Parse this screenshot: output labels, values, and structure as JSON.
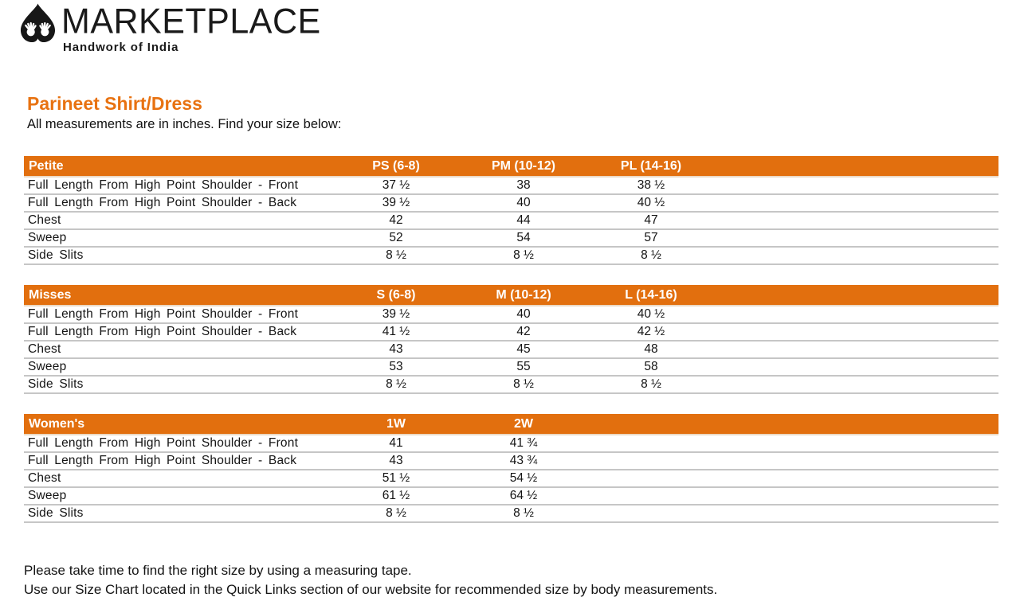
{
  "logo": {
    "brand": "MARKETPLACE",
    "tagline": "Handwork of India",
    "icon": "leaf-hands-logo-icon"
  },
  "page": {
    "title": "Parineet Shirt/Dress",
    "subtitle": "All measurements are in inches. Find your size below:",
    "footer_lines": [
      "Please take time to find the right size by using a measuring tape.",
      "Use our Size Chart located in the Quick Links section of our website for recommended size by body measurements."
    ]
  },
  "colors": {
    "accent_orange": "#E26F0E",
    "title_orange": "#E87211",
    "row_border": "#C6C6C6",
    "header_border": "#ECD9C4",
    "header_text": "#FFFFFF"
  },
  "tables": [
    {
      "name": "Petite",
      "columns": [
        "PS (6-8)",
        "PM (10-12)",
        "PL (14-16)"
      ],
      "rows": [
        {
          "label": "Full Length From High Point Shoulder - Front",
          "values": [
            "37 ½",
            "38",
            "38 ½"
          ]
        },
        {
          "label": "Full Length From High Point Shoulder - Back",
          "values": [
            "39 ½",
            "40",
            "40 ½"
          ]
        },
        {
          "label": "Chest",
          "values": [
            "42",
            "44",
            "47"
          ]
        },
        {
          "label": "Sweep",
          "values": [
            "52",
            "54",
            "57"
          ]
        },
        {
          "label": "Side Slits",
          "values": [
            "8 ½",
            "8 ½",
            "8 ½"
          ]
        }
      ]
    },
    {
      "name": "Misses",
      "columns": [
        "S (6-8)",
        "M (10-12)",
        "L (14-16)"
      ],
      "rows": [
        {
          "label": "Full Length From High Point Shoulder - Front",
          "values": [
            "39 ½",
            "40",
            "40 ½"
          ]
        },
        {
          "label": "Full Length From High Point Shoulder - Back",
          "values": [
            "41 ½",
            "42",
            "42 ½"
          ]
        },
        {
          "label": "Chest",
          "values": [
            "43",
            "45",
            "48"
          ]
        },
        {
          "label": "Sweep",
          "values": [
            "53",
            "55",
            "58"
          ]
        },
        {
          "label": "Side Slits",
          "values": [
            "8 ½",
            "8 ½",
            "8 ½"
          ]
        }
      ]
    },
    {
      "name": "Women's",
      "columns": [
        "1W",
        "2W"
      ],
      "rows": [
        {
          "label": "Full Length From High Point Shoulder - Front",
          "values": [
            "41",
            "41 ¾"
          ]
        },
        {
          "label": "Full Length From High Point Shoulder - Back",
          "values": [
            "43",
            "43 ¾"
          ]
        },
        {
          "label": "Chest",
          "values": [
            "51 ½",
            "54 ½"
          ]
        },
        {
          "label": "Sweep",
          "values": [
            "61 ½",
            "64 ½"
          ]
        },
        {
          "label": "Side Slits",
          "values": [
            "8 ½",
            "8 ½"
          ]
        }
      ]
    }
  ]
}
